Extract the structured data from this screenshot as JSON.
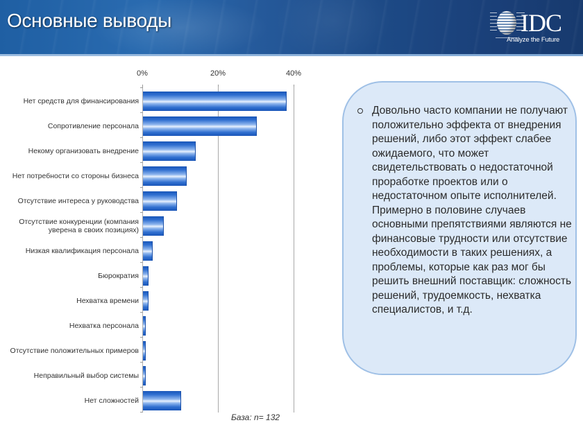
{
  "header": {
    "title": "Основные выводы",
    "logo": {
      "text": "IDC",
      "tagline": "Analyze the Future",
      "icon": "idc-globe-icon"
    }
  },
  "chart_data": {
    "type": "bar",
    "orientation": "horizontal",
    "title": "",
    "xlabel": "",
    "ylabel": "",
    "xlim": [
      0,
      40
    ],
    "x_ticks": [
      "0%",
      "20%",
      "40%"
    ],
    "grid": true,
    "categories": [
      "Нет средств для финансирования",
      "Сопротивление персонала",
      "Некому организовать внедрение",
      "Нет потребности со стороны бизнеса",
      "Отсутствие интереса у руководства",
      "Отсутствие конкуренции (компания уверена в своих позициях)",
      "Низкая квалификация персонала",
      "Бюрократия",
      "Нехватка времени",
      "Нехватка персонала",
      "Отсутствие положительных примеров",
      "Неправильный выбор системы",
      "Нет сложностей"
    ],
    "values": [
      38,
      30,
      14,
      11.5,
      9,
      5.5,
      2.5,
      1.5,
      1.5,
      0.8,
      0.8,
      0.8,
      10
    ],
    "unit": "%",
    "note": "База: n= 132"
  },
  "chart": {
    "ticks": [
      {
        "label": "0%",
        "value": 0
      },
      {
        "label": "20%",
        "value": 20
      },
      {
        "label": "40%",
        "value": 40
      }
    ],
    "rows": [
      {
        "label": "Нет средств для финансирования",
        "value": 38
      },
      {
        "label": "Сопротивление персонала",
        "value": 30
      },
      {
        "label": "Некому организовать внедрение",
        "value": 14
      },
      {
        "label": "Нет потребности со стороны бизнеса",
        "value": 11.5
      },
      {
        "label": "Отсутствие интереса у руководства",
        "value": 9
      },
      {
        "label": "Отсутствие конкуренции (компания уверена в своих позициях)",
        "value": 5.5
      },
      {
        "label": "Низкая квалификация персонала",
        "value": 2.5
      },
      {
        "label": "Бюрократия",
        "value": 1.5
      },
      {
        "label": "Нехватка времени",
        "value": 1.5
      },
      {
        "label": "Нехватка персонала",
        "value": 0.8
      },
      {
        "label": "Отсутствие положительных примеров",
        "value": 0.8
      },
      {
        "label": "Неправильный выбор системы",
        "value": 0.8
      },
      {
        "label": "Нет сложностей",
        "value": 10
      }
    ],
    "base_note": "База: n= 132",
    "bar_color": "#2f6fd0"
  },
  "callout": {
    "bullet_icon": "hollow-circle-bullet-icon",
    "text": "Довольно часто компании не получают положительно эффекта от внедрения решений, либо этот эффект слабее ожидаемого, что может свидетельствовать о недостаточной проработке проектов или о недостаточном опыте исполнителей. Примерно в половине случаев основными препятствиями являются не финансовые трудности или отсутствие необходимости в таких решениях, а проблемы, которые как раз мог бы решить внешний поставщик: сложность решений, трудоемкость, нехватка специалистов, и т.д.",
    "background": "#dce9f8",
    "border": "#9fc0e6"
  }
}
